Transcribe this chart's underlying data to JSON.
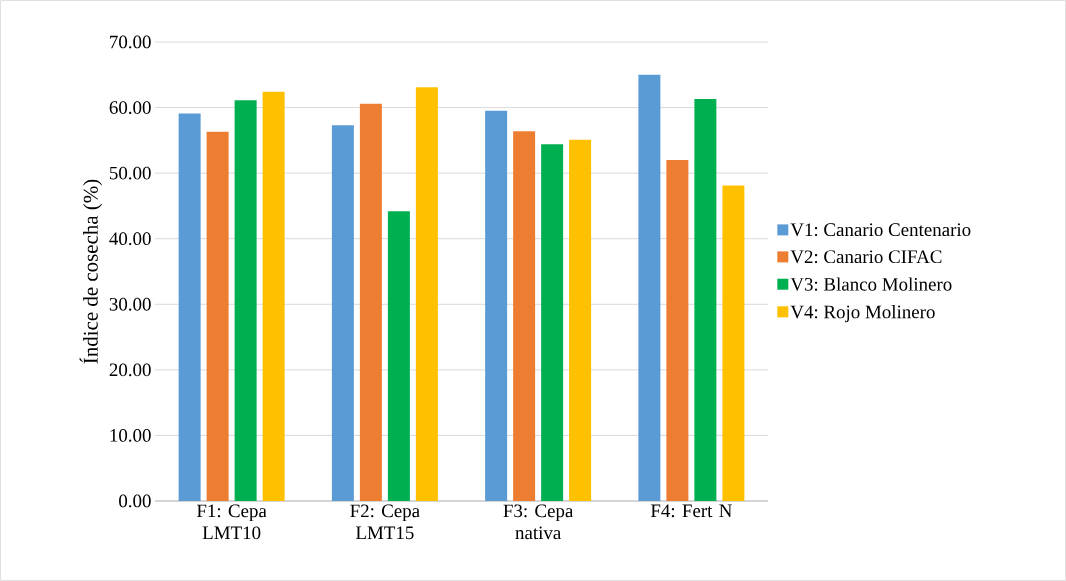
{
  "chart_data": {
    "type": "bar",
    "ylabel": "Índice de cosecha (%)",
    "categories": [
      "F1: Cepa LMT10",
      "F2: Cepa LMT15",
      "F3: Cepa nativa",
      "F4: Fert N"
    ],
    "series": [
      {
        "name": "V1: Canario Centenario",
        "color": "#5b9bd5",
        "values": [
          59.1,
          57.3,
          59.5,
          65.0
        ]
      },
      {
        "name": "V2: Canario CIFAC",
        "color": "#ed7d31",
        "values": [
          56.3,
          60.6,
          56.4,
          52.0
        ]
      },
      {
        "name": "V3: Blanco Molinero",
        "color": "#00b050",
        "values": [
          61.1,
          44.2,
          54.4,
          61.3
        ]
      },
      {
        "name": "V4: Rojo Molinero",
        "color": "#ffc000",
        "values": [
          62.4,
          63.1,
          55.1,
          48.1
        ]
      }
    ],
    "ylim": [
      0,
      70
    ],
    "yticks": [
      {
        "value": 0,
        "label": "0.00"
      },
      {
        "value": 10,
        "label": "10.00"
      },
      {
        "value": 20,
        "label": "20.00"
      },
      {
        "value": 30,
        "label": "30.00"
      },
      {
        "value": 40,
        "label": "40.00"
      },
      {
        "value": 50,
        "label": "50.00"
      },
      {
        "value": 60,
        "label": "60.00"
      },
      {
        "value": 70,
        "label": "70.00"
      }
    ],
    "grid": "y",
    "legend": "right"
  }
}
